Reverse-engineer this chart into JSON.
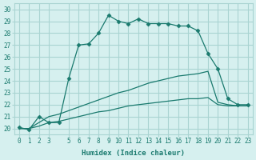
{
  "xlabel": "Humidex (Indice chaleur)",
  "ylabel": "",
  "bg_color": "#d6f0ef",
  "grid_color": "#aad4d2",
  "line_color": "#1a7a6e",
  "xlim": [
    -0.5,
    23.5
  ],
  "ylim": [
    19.5,
    30.5
  ],
  "yticks": [
    20,
    21,
    22,
    23,
    24,
    25,
    26,
    27,
    28,
    29,
    30
  ],
  "xticks": [
    0,
    1,
    2,
    3,
    5,
    6,
    7,
    8,
    9,
    10,
    11,
    12,
    13,
    14,
    15,
    16,
    17,
    18,
    19,
    20,
    21,
    22,
    23
  ],
  "series": [
    {
      "x": [
        0,
        1,
        2,
        3,
        4,
        5,
        6,
        7,
        8,
        9,
        10,
        11,
        12,
        13,
        14,
        15,
        16,
        17,
        18,
        19,
        20,
        21,
        22,
        23
      ],
      "y": [
        20.1,
        19.9,
        21.0,
        20.5,
        20.5,
        24.2,
        27.0,
        27.1,
        28.0,
        29.5,
        29.0,
        28.8,
        29.2,
        28.8,
        28.8,
        28.8,
        28.6,
        28.6,
        28.2,
        26.3,
        25.0,
        22.5,
        22.0,
        22.0
      ],
      "marker": "D",
      "markersize": 2.5
    },
    {
      "x": [
        0,
        1,
        2,
        3,
        4,
        5,
        6,
        7,
        8,
        9,
        10,
        11,
        12,
        13,
        14,
        15,
        16,
        17,
        18,
        19,
        20,
        21,
        22,
        23
      ],
      "y": [
        20.0,
        20.0,
        20.5,
        21.0,
        21.2,
        21.5,
        21.8,
        22.1,
        22.4,
        22.7,
        23.0,
        23.2,
        23.5,
        23.8,
        24.0,
        24.2,
        24.4,
        24.5,
        24.6,
        24.8,
        22.2,
        22.0,
        21.9,
        21.9
      ],
      "marker": null,
      "markersize": 0
    },
    {
      "x": [
        0,
        1,
        2,
        3,
        4,
        5,
        6,
        7,
        8,
        9,
        10,
        11,
        12,
        13,
        14,
        15,
        16,
        17,
        18,
        19,
        20,
        21,
        22,
        23
      ],
      "y": [
        20.0,
        20.0,
        20.2,
        20.5,
        20.6,
        20.8,
        21.0,
        21.2,
        21.4,
        21.5,
        21.7,
        21.9,
        22.0,
        22.1,
        22.2,
        22.3,
        22.4,
        22.5,
        22.5,
        22.6,
        22.0,
        21.9,
        21.9,
        21.9
      ],
      "marker": null,
      "markersize": 0
    }
  ]
}
